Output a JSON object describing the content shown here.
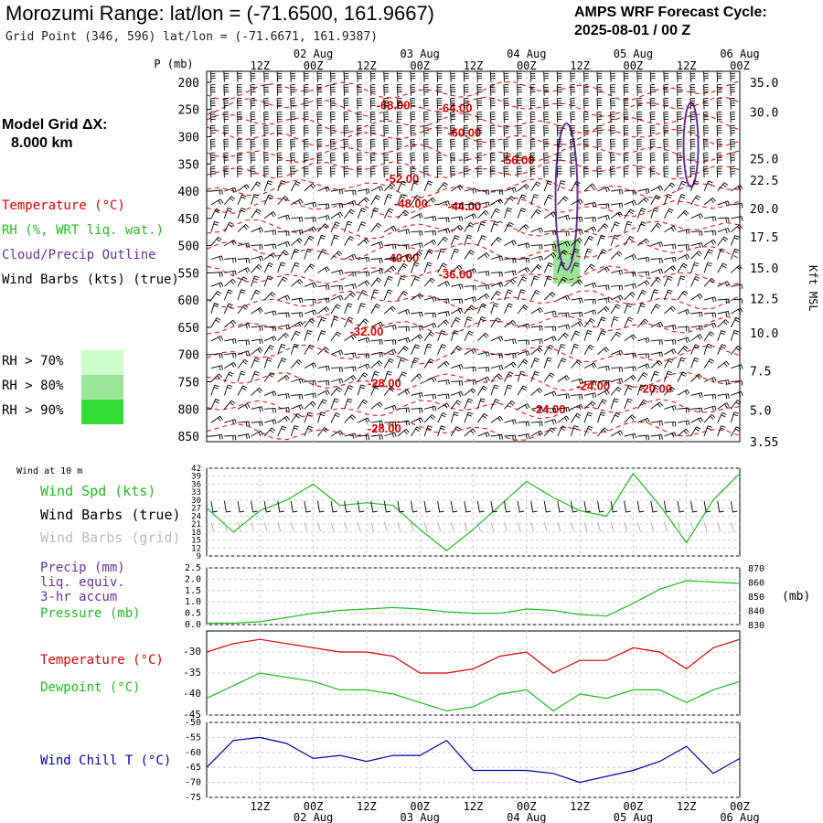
{
  "header": {
    "title": "Morozumi Range:  lat/lon = (-71.6500, 161.9667)",
    "subtitle": "Grid Point (346, 596) lat/lon = (-71.6671, 161.9387)",
    "cycle_line1": "AMPS WRF Forecast Cycle:",
    "cycle_line2": "2025-08-01 / 00  Z",
    "grid_label_line1": "Model Grid ΔX:",
    "grid_label_line2": "8.000 km"
  },
  "legend": {
    "temperature": "Temperature (°C)",
    "rh": "RH (%, WRT liq. wat.)",
    "cloud": "Cloud/Precip Outline",
    "wind": "Wind Barbs (kts) (true)",
    "rh70": "RH > 70%",
    "rh80": "RH > 80%",
    "rh90": "RH > 90%",
    "rh70_color": "#ccffcc",
    "rh80_color": "#99e699",
    "rh90_color": "#33dd33"
  },
  "colors": {
    "temperature": "#dd0000",
    "rh": "#22bb22",
    "cloud": "#663399",
    "wind": "#000000",
    "windgrid": "#aaaaaa",
    "dewpoint": "#22bb22",
    "windchill": "#0000aa",
    "gridline": "#aaaaaa"
  },
  "time_axis": {
    "top_dates": [
      "02 Aug",
      "03 Aug",
      "04 Aug",
      "05 Aug",
      "06 Aug"
    ],
    "hour_labels": [
      "12Z",
      "00Z",
      "12Z",
      "00Z",
      "12Z",
      "00Z",
      "12Z",
      "00Z",
      "12Z",
      "00Z"
    ],
    "bottom_hours": [
      "12Z",
      "00Z",
      "12Z",
      "00Z",
      "12Z",
      "00Z",
      "12Z",
      "00Z",
      "12Z",
      "00Z"
    ],
    "bottom_dates": [
      "02 Aug",
      "03 Aug",
      "04 Aug",
      "05 Aug",
      "06 Aug"
    ]
  },
  "chart_data": [
    {
      "type": "line",
      "name": "cross-section",
      "ylabel": "P (mb)",
      "ylabel_right": "Kft MSL",
      "pressure_ticks": [
        200,
        250,
        300,
        350,
        400,
        450,
        500,
        550,
        600,
        650,
        700,
        750,
        800,
        850
      ],
      "kft_ticks": [
        "35.0",
        "30.0",
        "25.0",
        "22.5",
        "20.0",
        "17.5",
        "15.0",
        "12.5",
        "10.0",
        "7.5",
        "5.0",
        "3.55"
      ],
      "temperature_labels": [
        "-68.00",
        "-64.00",
        "-60.00",
        "-56.00",
        "-52.00",
        "-48.00",
        "-44.00",
        "-40.00",
        "-36.00",
        "-32.00",
        "-28.00",
        "-24.00",
        "-24.00",
        "-20.00",
        "-28.00"
      ],
      "rh_shading": [
        {
          "t_start_h": 78,
          "t_end_h": 84,
          "p_top": 490,
          "p_bottom": 570,
          "level": "rh80"
        }
      ],
      "cloud_outlines": 2
    },
    {
      "type": "line",
      "name": "wind-10m",
      "title": "Wind at 10 m",
      "ylim": [
        9,
        42
      ],
      "yticks": [
        9,
        12,
        15,
        18,
        21,
        24,
        27,
        30,
        33,
        36,
        39,
        42
      ],
      "x_hours": [
        0,
        6,
        12,
        18,
        24,
        30,
        36,
        42,
        48,
        54,
        60,
        66,
        72,
        78,
        84,
        90,
        96,
        102,
        108,
        114,
        120
      ],
      "series": [
        {
          "name": "Wind Spd (kts)",
          "values": [
            27,
            18,
            26,
            30,
            36,
            28,
            29,
            28,
            19,
            11,
            19,
            28,
            37,
            31,
            26,
            24,
            40,
            28,
            14,
            30,
            40
          ]
        }
      ]
    },
    {
      "type": "line",
      "name": "precip-pressure",
      "ylim": [
        0,
        2.5
      ],
      "yticks": [
        "0.0",
        "0.5",
        "1.0",
        "1.5",
        "2.0",
        "2.5"
      ],
      "ylim_right": [
        830,
        870
      ],
      "yticks_right": [
        "830",
        "840",
        "850",
        "860",
        "870"
      ],
      "ylabel_right": "(mb)",
      "x_hours": [
        0,
        6,
        12,
        18,
        24,
        30,
        36,
        42,
        48,
        54,
        60,
        66,
        72,
        78,
        84,
        90,
        96,
        102,
        108,
        114,
        120
      ],
      "series": [
        {
          "name": "Pressure (mb)",
          "values": [
            831,
            831,
            832,
            835,
            838,
            840,
            841,
            842,
            841,
            839,
            838,
            838,
            841,
            840,
            837,
            836,
            845,
            855,
            861,
            860,
            859
          ]
        }
      ]
    },
    {
      "type": "line",
      "name": "temperature-dewpoint",
      "ylim": [
        -45,
        -25
      ],
      "yticks": [
        -45,
        -40,
        -35,
        -30
      ],
      "x_hours": [
        0,
        6,
        12,
        18,
        24,
        30,
        36,
        42,
        48,
        54,
        60,
        66,
        72,
        78,
        84,
        90,
        96,
        102,
        108,
        114,
        120
      ],
      "series": [
        {
          "name": "Temperature (°C)",
          "values": [
            -30,
            -28,
            -27,
            -28,
            -29,
            -30,
            -30,
            -31,
            -35,
            -35,
            -34,
            -31,
            -30,
            -35,
            -32,
            -32,
            -29,
            -30,
            -34,
            -29,
            -27
          ]
        },
        {
          "name": "Dewpoint (°C)",
          "values": [
            -41,
            -38,
            -35,
            -36,
            -37,
            -39,
            -39,
            -40,
            -42,
            -44,
            -43,
            -40,
            -39,
            -44,
            -40,
            -41,
            -39,
            -39,
            -42,
            -39,
            -37
          ]
        }
      ]
    },
    {
      "type": "line",
      "name": "wind-chill",
      "ylim": [
        -75,
        -50
      ],
      "yticks": [
        -75,
        -70,
        -65,
        -60,
        -55,
        -50
      ],
      "x_hours": [
        0,
        6,
        12,
        18,
        24,
        30,
        36,
        42,
        48,
        54,
        60,
        66,
        72,
        78,
        84,
        90,
        96,
        102,
        108,
        114,
        120
      ],
      "series": [
        {
          "name": "Wind Chill T (°C)",
          "values": [
            -65,
            -56,
            -55,
            -57,
            -62,
            -61,
            -63,
            -61,
            -61,
            -56,
            -66,
            -66,
            -66,
            -67,
            -70,
            -68,
            -66,
            -63,
            -58,
            -67,
            -62
          ]
        }
      ]
    }
  ]
}
